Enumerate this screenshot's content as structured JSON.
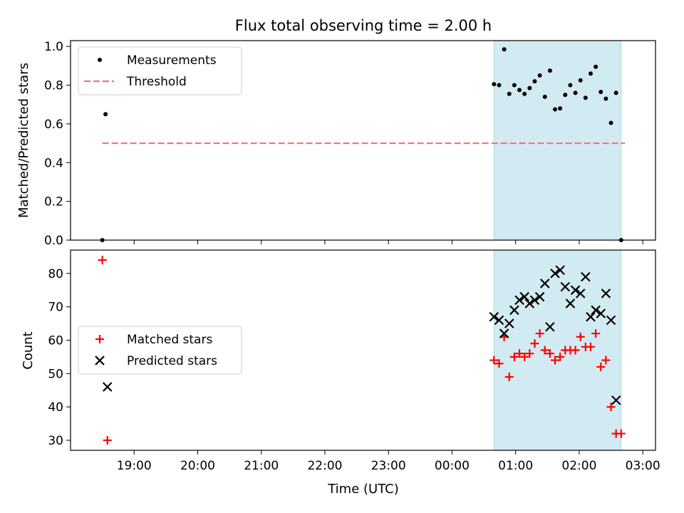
{
  "chart_data": [
    {
      "type": "scatter",
      "title": "Flux total observing time = 2.00 h",
      "xlabel": "",
      "ylabel": "Matched/Predicted stars",
      "ylim": [
        0.0,
        1.03
      ],
      "yticks": [
        0.0,
        0.2,
        0.4,
        0.6,
        0.8,
        1.0
      ],
      "ytick_labels": [
        "0.0",
        "0.2",
        "0.4",
        "0.6",
        "0.8",
        "1.0"
      ],
      "x_axis": "time (UTC), hours since 18:00",
      "xlim_hours": [
        0.0,
        9.2
      ],
      "shaded_span_hours": [
        6.66,
        8.66
      ],
      "shaded_color": "#add8e6",
      "legend_position": "upper left",
      "series": [
        {
          "name": "Measurements",
          "marker": "dot",
          "color": "#000000",
          "points": [
            [
              0.5,
              0.0
            ],
            [
              0.55,
              0.65
            ],
            [
              6.66,
              0.805
            ],
            [
              6.74,
              0.8
            ],
            [
              6.82,
              0.985
            ],
            [
              6.9,
              0.755
            ],
            [
              6.98,
              0.8
            ],
            [
              7.06,
              0.775
            ],
            [
              7.14,
              0.755
            ],
            [
              7.22,
              0.785
            ],
            [
              7.3,
              0.82
            ],
            [
              7.38,
              0.85
            ],
            [
              7.46,
              0.74
            ],
            [
              7.54,
              0.875
            ],
            [
              7.62,
              0.675
            ],
            [
              7.7,
              0.68
            ],
            [
              7.78,
              0.75
            ],
            [
              7.86,
              0.8
            ],
            [
              7.94,
              0.76
            ],
            [
              8.02,
              0.825
            ],
            [
              8.1,
              0.735
            ],
            [
              8.18,
              0.86
            ],
            [
              8.26,
              0.895
            ],
            [
              8.34,
              0.765
            ],
            [
              8.42,
              0.73
            ],
            [
              8.5,
              0.605
            ],
            [
              8.58,
              0.76
            ],
            [
              8.66,
              0.0
            ]
          ]
        },
        {
          "name": "Threshold",
          "marker": "dashed-line",
          "color": "#ff7070",
          "x_range": [
            0.5,
            8.72
          ],
          "y": 0.5
        }
      ]
    },
    {
      "type": "scatter",
      "title": "",
      "xlabel": "Time (UTC)",
      "ylabel": "Count",
      "ylim": [
        27,
        87
      ],
      "yticks": [
        30,
        40,
        50,
        60,
        70,
        80
      ],
      "ytick_labels": [
        "30",
        "40",
        "50",
        "60",
        "70",
        "80"
      ],
      "xlim_hours": [
        0.0,
        9.2
      ],
      "xticks_hours": [
        1,
        2,
        3,
        4,
        5,
        6,
        7,
        8,
        9
      ],
      "xtick_labels": [
        "19:00",
        "20:00",
        "21:00",
        "22:00",
        "23:00",
        "00:00",
        "01:00",
        "02:00",
        "03:00"
      ],
      "shaded_span_hours": [
        6.66,
        8.66
      ],
      "shaded_color": "#add8e6",
      "legend_position": "center left",
      "series": [
        {
          "name": "Matched stars",
          "marker": "plus",
          "color": "#ff0000",
          "points": [
            [
              0.5,
              84
            ],
            [
              0.58,
              30
            ],
            [
              6.66,
              54
            ],
            [
              6.74,
              53
            ],
            [
              6.82,
              61
            ],
            [
              6.9,
              49
            ],
            [
              6.98,
              55
            ],
            [
              7.06,
              56
            ],
            [
              7.14,
              55
            ],
            [
              7.22,
              56
            ],
            [
              7.3,
              59
            ],
            [
              7.38,
              62
            ],
            [
              7.46,
              57
            ],
            [
              7.54,
              56
            ],
            [
              7.62,
              54
            ],
            [
              7.7,
              55
            ],
            [
              7.78,
              57
            ],
            [
              7.86,
              57
            ],
            [
              7.94,
              57
            ],
            [
              8.02,
              61
            ],
            [
              8.1,
              58
            ],
            [
              8.18,
              58
            ],
            [
              8.26,
              62
            ],
            [
              8.34,
              52
            ],
            [
              8.42,
              54
            ],
            [
              8.5,
              40
            ],
            [
              8.58,
              32
            ],
            [
              8.66,
              32
            ]
          ]
        },
        {
          "name": "Predicted stars",
          "marker": "x",
          "color": "#000000",
          "points": [
            [
              0.58,
              46
            ],
            [
              6.66,
              67
            ],
            [
              6.74,
              66
            ],
            [
              6.82,
              62
            ],
            [
              6.9,
              65
            ],
            [
              6.98,
              69
            ],
            [
              7.06,
              72
            ],
            [
              7.14,
              73
            ],
            [
              7.22,
              71
            ],
            [
              7.3,
              72
            ],
            [
              7.38,
              73
            ],
            [
              7.46,
              77
            ],
            [
              7.54,
              64
            ],
            [
              7.62,
              80
            ],
            [
              7.7,
              81
            ],
            [
              7.78,
              76
            ],
            [
              7.86,
              71
            ],
            [
              7.94,
              75
            ],
            [
              8.02,
              74
            ],
            [
              8.1,
              79
            ],
            [
              8.18,
              67
            ],
            [
              8.26,
              69
            ],
            [
              8.34,
              68
            ],
            [
              8.42,
              74
            ],
            [
              8.5,
              66
            ],
            [
              8.58,
              42
            ]
          ]
        }
      ]
    }
  ]
}
